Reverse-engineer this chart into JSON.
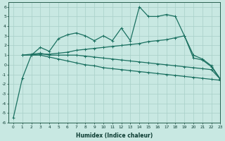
{
  "xlabel": "Humidex (Indice chaleur)",
  "xlim": [
    -0.5,
    23
  ],
  "ylim": [
    -6,
    6.5
  ],
  "xticks": [
    0,
    1,
    2,
    3,
    4,
    5,
    6,
    7,
    8,
    9,
    10,
    11,
    12,
    13,
    14,
    15,
    16,
    17,
    18,
    19,
    20,
    21,
    22,
    23
  ],
  "yticks": [
    -6,
    -5,
    -4,
    -3,
    -2,
    -1,
    0,
    1,
    2,
    3,
    4,
    5,
    6
  ],
  "bg_color": "#c8e8e2",
  "line_color": "#1a7060",
  "grid_color": "#a8cfc8",
  "line_jagged_x": [
    2,
    3,
    4,
    5,
    6,
    7,
    8,
    9,
    10,
    11,
    12,
    13,
    14,
    15,
    16,
    17,
    18,
    19,
    20,
    21,
    22,
    23
  ],
  "line_jagged_y": [
    1.0,
    1.8,
    1.4,
    2.7,
    3.1,
    3.3,
    3.0,
    2.5,
    3.0,
    2.5,
    3.8,
    2.5,
    6.0,
    5.0,
    5.0,
    5.2,
    5.0,
    3.0,
    0.7,
    0.5,
    -0.2,
    -1.5
  ],
  "line_rise_x": [
    1,
    2,
    3,
    4,
    5,
    6,
    7,
    8,
    9,
    10,
    11,
    12,
    13,
    14,
    15,
    16,
    17,
    18,
    19,
    20,
    21,
    22,
    23
  ],
  "line_rise_y": [
    1.0,
    1.0,
    1.1,
    1.1,
    1.2,
    1.3,
    1.5,
    1.6,
    1.7,
    1.8,
    1.9,
    2.0,
    2.1,
    2.2,
    2.4,
    2.5,
    2.6,
    2.8,
    3.0,
    1.0,
    0.6,
    -0.1,
    -1.5
  ],
  "line_flat_x": [
    1,
    2,
    3,
    4,
    5,
    6,
    7,
    8,
    9,
    10,
    11,
    12,
    13,
    14,
    15,
    16,
    17,
    18,
    19,
    20,
    21,
    22,
    23
  ],
  "line_flat_y": [
    1.0,
    1.1,
    1.2,
    1.0,
    1.0,
    1.0,
    1.0,
    0.9,
    0.8,
    0.7,
    0.6,
    0.5,
    0.4,
    0.3,
    0.2,
    0.1,
    0.0,
    -0.1,
    -0.2,
    -0.3,
    -0.4,
    -0.5,
    -1.5
  ],
  "line_steep_x": [
    0,
    1,
    2,
    3,
    4,
    5,
    6,
    7,
    8,
    9,
    10,
    11,
    12,
    13,
    14,
    15,
    16,
    17,
    18,
    19,
    20,
    21,
    22,
    23
  ],
  "line_steep_y": [
    -5.5,
    -1.4,
    1.0,
    1.0,
    0.8,
    0.6,
    0.4,
    0.2,
    0.0,
    -0.1,
    -0.3,
    -0.4,
    -0.5,
    -0.6,
    -0.7,
    -0.8,
    -0.9,
    -1.0,
    -1.1,
    -1.2,
    -1.3,
    -1.4,
    -1.5,
    -1.6
  ]
}
